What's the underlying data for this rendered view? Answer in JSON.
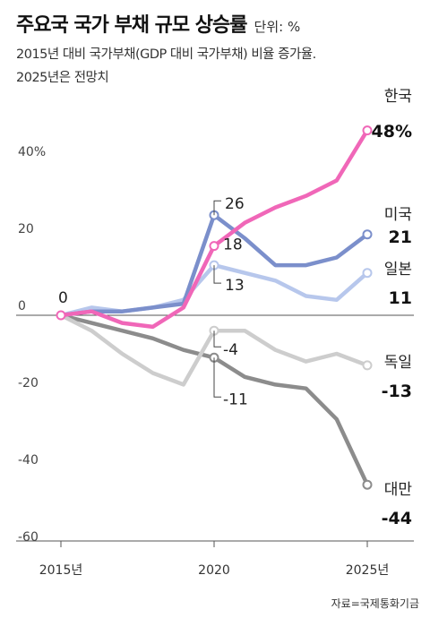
{
  "title": "주요국 국가 부채 규모 상승률",
  "unit": "단위: %",
  "subtitle_lines": [
    "2015년 대비 국가부채(GDP 대비 국가부채) 비율 증가율.",
    "2025년은 전망치"
  ],
  "source": "자료=국제통화기금",
  "chart_data": {
    "type": "line",
    "x": [
      2015,
      2016,
      2017,
      2018,
      2019,
      2020,
      2021,
      2022,
      2023,
      2024,
      2025
    ],
    "x_tick_labels": [
      "2015년",
      "2020",
      "2025년"
    ],
    "y_tick_labels": [
      "40%",
      "20",
      "0",
      "-20",
      "-40",
      "-60"
    ],
    "y_ticks": [
      40,
      20,
      0,
      -20,
      -40,
      -60
    ],
    "ylim": [
      -60,
      50
    ],
    "grid": false,
    "series": [
      {
        "name": "한국",
        "end_label": "48%",
        "color": "#f067b8",
        "values": [
          0,
          1,
          -2,
          -3,
          2,
          18,
          24,
          28,
          31,
          35,
          48
        ]
      },
      {
        "name": "미국",
        "end_label": "21",
        "color": "#7b8fcb",
        "values": [
          0,
          1,
          1,
          2,
          3,
          26,
          20,
          13,
          13,
          15,
          21
        ]
      },
      {
        "name": "일본",
        "end_label": "11",
        "color": "#b7c7ec",
        "values": [
          0,
          2,
          1,
          2,
          4,
          13,
          11,
          9,
          5,
          4,
          11
        ]
      },
      {
        "name": "독일",
        "end_label": "-13",
        "color": "#cdcdcd",
        "values": [
          0,
          -4,
          -10,
          -15,
          -18,
          -4,
          -4,
          -9,
          -12,
          -10,
          -13
        ]
      },
      {
        "name": "대만",
        "end_label": "-44",
        "color": "#8c8c8c",
        "values": [
          0,
          -2,
          -4,
          -6,
          -9,
          -11,
          -16,
          -18,
          -19,
          -27,
          -44
        ]
      }
    ],
    "annotations": [
      {
        "text": "0",
        "x": 2015,
        "y": 0
      },
      {
        "text": "26",
        "x": 2020,
        "y": 26
      },
      {
        "text": "18",
        "x": 2020,
        "y": 18
      },
      {
        "text": "13",
        "x": 2020,
        "y": 13
      },
      {
        "text": "-4",
        "x": 2020,
        "y": -4
      },
      {
        "text": "-11",
        "x": 2020,
        "y": -11
      }
    ]
  }
}
